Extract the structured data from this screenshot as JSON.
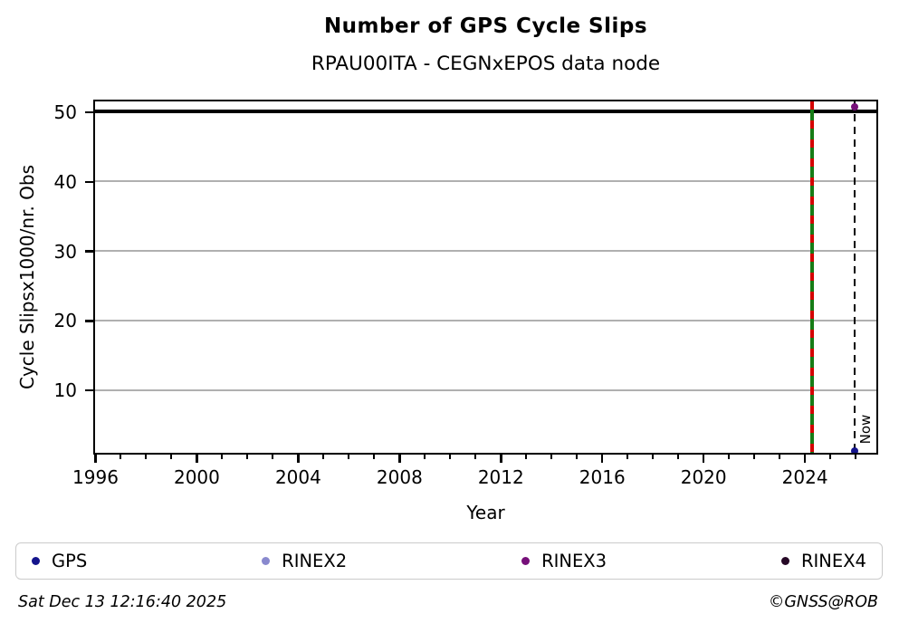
{
  "page": {
    "footer_left": "Sat Dec 13 12:16:40 2025",
    "footer_right": "©GNSS@ROB"
  },
  "chart_data": {
    "type": "scatter",
    "title": "Number of GPS Cycle Slips",
    "subtitle": "RPAU00ITA - CEGNxEPOS data node",
    "xlabel": "Year",
    "ylabel": "Cycle Slipsx1000/nr. Obs",
    "xlim": [
      1996,
      2026.8
    ],
    "ylim": [
      1.1,
      51.5
    ],
    "xticks_major": [
      1996,
      2000,
      2004,
      2008,
      2012,
      2016,
      2020,
      2024
    ],
    "xtick_minor_step": 1,
    "yticks": [
      10,
      20,
      30,
      40,
      50
    ],
    "grid": "horizontal",
    "grid_color": "#b0b0b0",
    "axis_color": "#000000",
    "hline": {
      "y": 50.1,
      "color": "#000000"
    },
    "event_line": {
      "x": 2024.29,
      "solid_color": "#167c16",
      "dash_color": "#d40000"
    },
    "now_line": {
      "x": 2025.98,
      "label": "Now",
      "color": "#000000"
    },
    "series": [
      {
        "name": "GPS",
        "color": "#14148c",
        "points": [
          [
            2025.98,
            1.2
          ]
        ]
      },
      {
        "name": "RINEX2",
        "color": "#8989ce",
        "points": []
      },
      {
        "name": "RINEX3",
        "color": "#760f79",
        "points": [
          [
            2025.98,
            50.7
          ]
        ]
      },
      {
        "name": "RINEX4",
        "color": "#260826",
        "points": []
      }
    ],
    "legend": [
      {
        "label": "GPS",
        "color": "#14148c"
      },
      {
        "label": "RINEX2",
        "color": "#8989ce"
      },
      {
        "label": "RINEX3",
        "color": "#760f79"
      },
      {
        "label": "RINEX4",
        "color": "#260826"
      }
    ]
  }
}
